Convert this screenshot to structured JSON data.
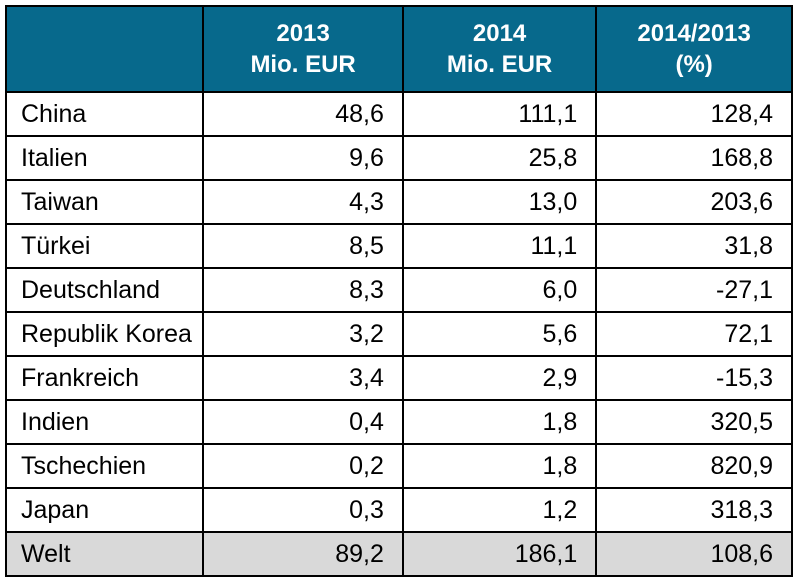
{
  "colors": {
    "header_bg": "#07698c",
    "header_fg": "#ffffff",
    "total_row_bg": "#d9d9d9",
    "border": "#000000"
  },
  "table": {
    "headers": [
      {
        "line1": "",
        "line2": ""
      },
      {
        "line1": "2013",
        "line2": "Mio. EUR"
      },
      {
        "line1": "2014",
        "line2": "Mio. EUR"
      },
      {
        "line1": "2014/2013",
        "line2": "(%)"
      }
    ],
    "rows": [
      {
        "label": "China",
        "y2013": "48,6",
        "y2014": "111,1",
        "change": "128,4"
      },
      {
        "label": "Italien",
        "y2013": "9,6",
        "y2014": "25,8",
        "change": "168,8"
      },
      {
        "label": "Taiwan",
        "y2013": "4,3",
        "y2014": "13,0",
        "change": "203,6"
      },
      {
        "label": "Türkei",
        "y2013": "8,5",
        "y2014": "11,1",
        "change": "31,8"
      },
      {
        "label": "Deutschland",
        "y2013": "8,3",
        "y2014": "6,0",
        "change": "-27,1"
      },
      {
        "label": "Republik Korea",
        "y2013": "3,2",
        "y2014": "5,6",
        "change": "72,1"
      },
      {
        "label": "Frankreich",
        "y2013": "3,4",
        "y2014": "2,9",
        "change": "-15,3"
      },
      {
        "label": "Indien",
        "y2013": "0,4",
        "y2014": "1,8",
        "change": "320,5"
      },
      {
        "label": "Tschechien",
        "y2013": "0,2",
        "y2014": "1,8",
        "change": "820,9"
      },
      {
        "label": "Japan",
        "y2013": "0,3",
        "y2014": "1,2",
        "change": "318,3"
      }
    ],
    "total": {
      "label": "Welt",
      "y2013": "89,2",
      "y2014": "186,1",
      "change": "108,6"
    }
  },
  "chart_data": {
    "type": "table",
    "title": "",
    "columns": [
      "",
      "2013 Mio. EUR",
      "2014 Mio. EUR",
      "2014/2013 (%)"
    ],
    "rows": [
      [
        "China",
        48.6,
        111.1,
        128.4
      ],
      [
        "Italien",
        9.6,
        25.8,
        168.8
      ],
      [
        "Taiwan",
        4.3,
        13.0,
        203.6
      ],
      [
        "Türkei",
        8.5,
        11.1,
        31.8
      ],
      [
        "Deutschland",
        8.3,
        6.0,
        -27.1
      ],
      [
        "Republik Korea",
        3.2,
        5.6,
        72.1
      ],
      [
        "Frankreich",
        3.4,
        2.9,
        -15.3
      ],
      [
        "Indien",
        0.4,
        1.8,
        320.5
      ],
      [
        "Tschechien",
        0.2,
        1.8,
        820.9
      ],
      [
        "Japan",
        0.3,
        1.2,
        318.3
      ],
      [
        "Welt",
        89.2,
        186.1,
        108.6
      ]
    ],
    "notes": "German-formatted decimal commas; last row 'Welt' is the world total with gray background"
  }
}
